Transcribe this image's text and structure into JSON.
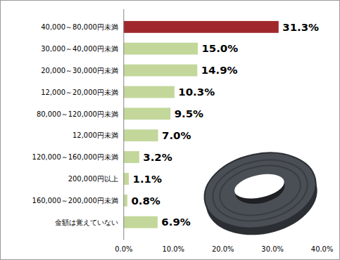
{
  "chart_data": {
    "type": "bar",
    "orientation": "horizontal",
    "categories": [
      "40,000～80,000円未満",
      "30,000～40,000円未満",
      "20,000～30,000円未満",
      "12,000～20,000円未満",
      "80,000～120,000円未満",
      "12,000円未満",
      "120,000～160,000円未満",
      "200,000円以上",
      "160,000～200,000円未満",
      "金額は覚えていない"
    ],
    "values": [
      31.3,
      15.0,
      14.9,
      10.3,
      9.5,
      7.0,
      3.2,
      1.1,
      0.8,
      6.9
    ],
    "value_labels": [
      "31.3%",
      "15.0%",
      "14.9%",
      "10.3%",
      "9.5%",
      "7.0%",
      "3.2%",
      "1.1%",
      "0.8%",
      "6.9%"
    ],
    "colors": [
      "#a0282c",
      "#c4d79b",
      "#c4d79b",
      "#c4d79b",
      "#c4d79b",
      "#c4d79b",
      "#c4d79b",
      "#c4d79b",
      "#c4d79b",
      "#c4d79b"
    ],
    "data_labels": true,
    "grid": false,
    "xlim": [
      0,
      40
    ],
    "xticks": [
      {
        "value": 0,
        "label": "0.0%"
      },
      {
        "value": 10,
        "label": "10.0%"
      },
      {
        "value": 20,
        "label": "20.0%"
      },
      {
        "value": 30,
        "label": "30.0%"
      },
      {
        "value": 40,
        "label": "40.0%"
      }
    ]
  }
}
